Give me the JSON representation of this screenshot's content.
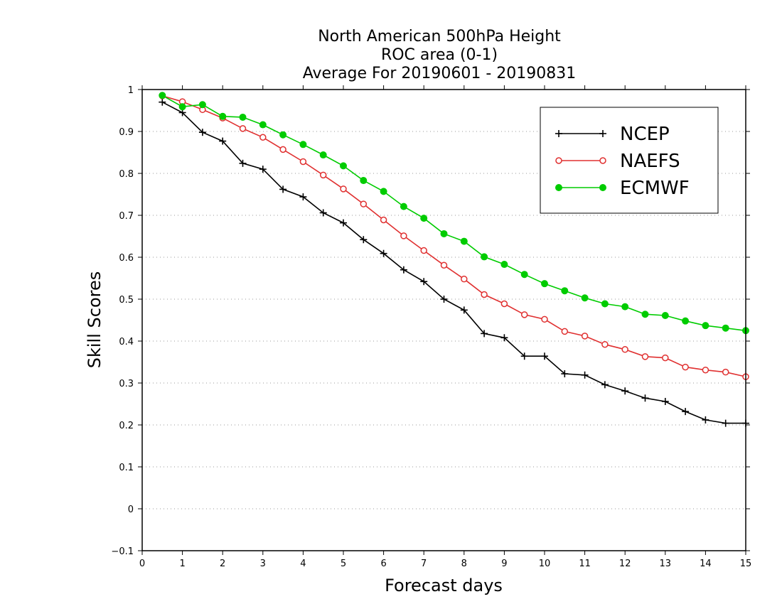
{
  "chart_data": {
    "type": "line",
    "title": [
      "North American 500hPa Height",
      "ROC area (0-1)",
      "Average For 20190601 - 20190831"
    ],
    "xlabel": "Forecast days",
    "ylabel": "Skill Scores",
    "xlim": [
      0,
      15
    ],
    "ylim": [
      -0.1,
      1
    ],
    "xticks": [
      "0",
      "1",
      "2",
      "3",
      "4",
      "5",
      "6",
      "7",
      "8",
      "9",
      "10",
      "11",
      "12",
      "13",
      "14",
      "15"
    ],
    "yticks": [
      "−0.1",
      "0",
      "0.1",
      "0.2",
      "0.3",
      "0.4",
      "0.5",
      "0.6",
      "0.7",
      "0.8",
      "0.9",
      "1"
    ],
    "grid": "horizontal dotted",
    "legend_position": "top-right",
    "x": [
      0.5,
      1,
      1.5,
      2,
      2.5,
      3,
      3.5,
      4,
      4.5,
      5,
      5.5,
      6,
      6.5,
      7,
      7.5,
      8,
      8.5,
      9,
      9.5,
      10,
      10.5,
      11,
      11.5,
      12,
      12.5,
      13,
      13.5,
      14,
      14.5,
      15
    ],
    "series": [
      {
        "name": "NCEP",
        "color": "#000000",
        "marker": "plus",
        "values": [
          0.97,
          0.945,
          0.898,
          0.877,
          0.824,
          0.81,
          0.762,
          0.744,
          0.706,
          0.682,
          0.642,
          0.609,
          0.57,
          0.542,
          0.5,
          0.474,
          0.418,
          0.408,
          0.364,
          0.364,
          0.322,
          0.319,
          0.296,
          0.281,
          0.264,
          0.256,
          0.232,
          0.212,
          0.204,
          0.204
        ]
      },
      {
        "name": "NAEFS",
        "color": "#e03030",
        "marker": "open-circle",
        "values": [
          0.985,
          0.971,
          0.952,
          0.932,
          0.907,
          0.886,
          0.857,
          0.828,
          0.796,
          0.763,
          0.727,
          0.689,
          0.651,
          0.616,
          0.581,
          0.548,
          0.511,
          0.489,
          0.463,
          0.452,
          0.423,
          0.412,
          0.392,
          0.38,
          0.363,
          0.36,
          0.338,
          0.331,
          0.326,
          0.315
        ]
      },
      {
        "name": "ECMWF",
        "color": "#00cc00",
        "marker": "filled-circle",
        "values": [
          0.986,
          0.959,
          0.964,
          0.936,
          0.934,
          0.916,
          0.892,
          0.869,
          0.844,
          0.818,
          0.783,
          0.757,
          0.721,
          0.693,
          0.656,
          0.638,
          0.601,
          0.583,
          0.559,
          0.537,
          0.52,
          0.503,
          0.489,
          0.482,
          0.464,
          0.461,
          0.448,
          0.437,
          0.431,
          0.425
        ]
      }
    ]
  }
}
